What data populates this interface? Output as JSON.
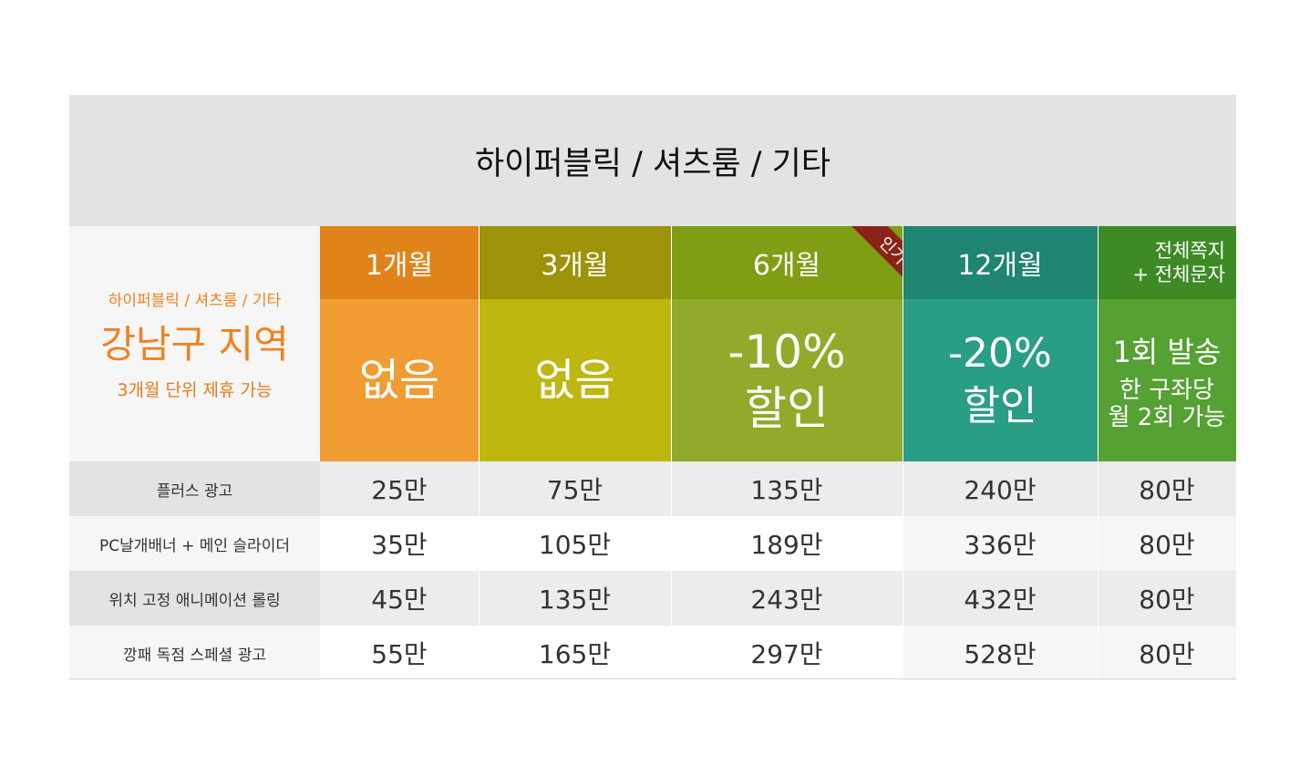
{
  "title": "하이퍼블릭 / 셔츠룸 / 기타",
  "side": {
    "subtitle": "하이퍼블릭 / 셔츠룸 / 기타",
    "region": "강남구 지역",
    "note": "3개월 단위 제휴 가능"
  },
  "columns": [
    {
      "header": "1개월",
      "benefit": "없음"
    },
    {
      "header": "3개월",
      "benefit": "없음"
    },
    {
      "header": "6개월",
      "benefit_line1": "-10%",
      "benefit_line2": "할인",
      "badge": "인기"
    },
    {
      "header": "12개월",
      "benefit_line1": "-20%",
      "benefit_line2": "할인"
    },
    {
      "header_line1": "전체쪽지",
      "header_line2": "+ 전체문자",
      "benefit_line1": "1회 발송",
      "benefit_line2": "한 구좌당",
      "benefit_line3": "월 2회 가능"
    }
  ],
  "rows": [
    {
      "label": "플러스 광고",
      "prices": [
        "25만",
        "75만",
        "135만",
        "240만",
        "80만"
      ]
    },
    {
      "label": "PC날개배너 + 메인 슬라이더",
      "prices": [
        "35만",
        "105만",
        "189만",
        "336만",
        "80만"
      ]
    },
    {
      "label": "위치 고정 애니메이션 롤링",
      "prices": [
        "45만",
        "135만",
        "243만",
        "432만",
        "80만"
      ]
    },
    {
      "label": "깡패 독점 스페셜 광고",
      "prices": [
        "55만",
        "165만",
        "297만",
        "528만",
        "80만"
      ]
    }
  ],
  "colors": {
    "col1_head": "#e0841a",
    "col1_body": "#f09c32",
    "col2_head": "#9d9208",
    "col2_body": "#bdb710",
    "col3_head": "#7f9e14",
    "col3_body": "#8fab29",
    "col4_head": "#1f8470",
    "col4_body": "#2a9d85",
    "col5_head": "#3e8b26",
    "col5_body": "#55a133",
    "badge": "#8b2318",
    "accent_text": "#f0821e"
  }
}
